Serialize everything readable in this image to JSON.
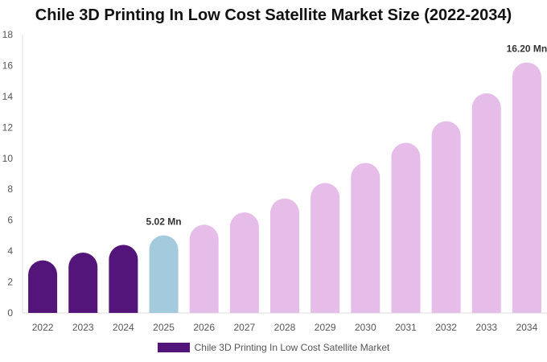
{
  "chart_data": {
    "type": "bar",
    "title": "Chile 3D Printing In Low Cost Satellite Market Size (2022-2034)",
    "xlabel": "",
    "ylabel": "",
    "ylim": [
      0,
      18
    ],
    "yticks": [
      0,
      2,
      4,
      6,
      8,
      10,
      12,
      14,
      16,
      18
    ],
    "grid": false,
    "legend_position": "bottom",
    "categories": [
      "2022",
      "2023",
      "2024",
      "2025",
      "2026",
      "2027",
      "2028",
      "2029",
      "2030",
      "2031",
      "2032",
      "2033",
      "2034"
    ],
    "series": [
      {
        "name": "Chile 3D Printing In Low Cost Satellite Market",
        "values": [
          3.4,
          3.9,
          4.4,
          5.02,
          5.7,
          6.5,
          7.4,
          8.4,
          9.7,
          11.0,
          12.4,
          14.2,
          16.2
        ]
      }
    ],
    "data_labels": [
      {
        "category": "2025",
        "text": "5.02 Mn"
      },
      {
        "category": "2034",
        "text": "16.20 Mn"
      }
    ],
    "colors": {
      "historical": "#54157a",
      "current": "#a4cbdd",
      "forecast": "#e6bde9"
    },
    "period_map": [
      "historical",
      "historical",
      "historical",
      "current",
      "forecast",
      "forecast",
      "forecast",
      "forecast",
      "forecast",
      "forecast",
      "forecast",
      "forecast",
      "forecast"
    ]
  }
}
